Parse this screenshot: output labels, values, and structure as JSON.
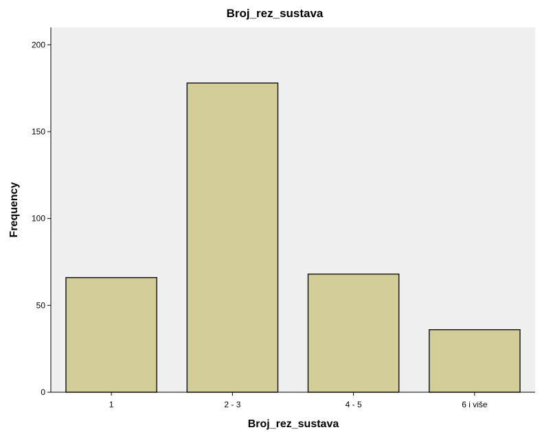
{
  "chart_data": {
    "type": "bar",
    "title": "Broj_rez_sustava",
    "xlabel": "Broj_rez_sustava",
    "ylabel": "Frequency",
    "categories": [
      "1",
      "2 - 3",
      "4 - 5",
      "6 i više"
    ],
    "values": [
      66,
      178,
      68,
      36
    ],
    "ylim": [
      0,
      210
    ],
    "yticks": [
      0,
      50,
      100,
      150,
      200
    ],
    "grid": false,
    "legend": "none",
    "colors": {
      "plot_background": "#f0f0f0",
      "bar_fill": "#d3ce97",
      "bar_stroke": "#1a1a1a",
      "axis": "#000000"
    }
  }
}
